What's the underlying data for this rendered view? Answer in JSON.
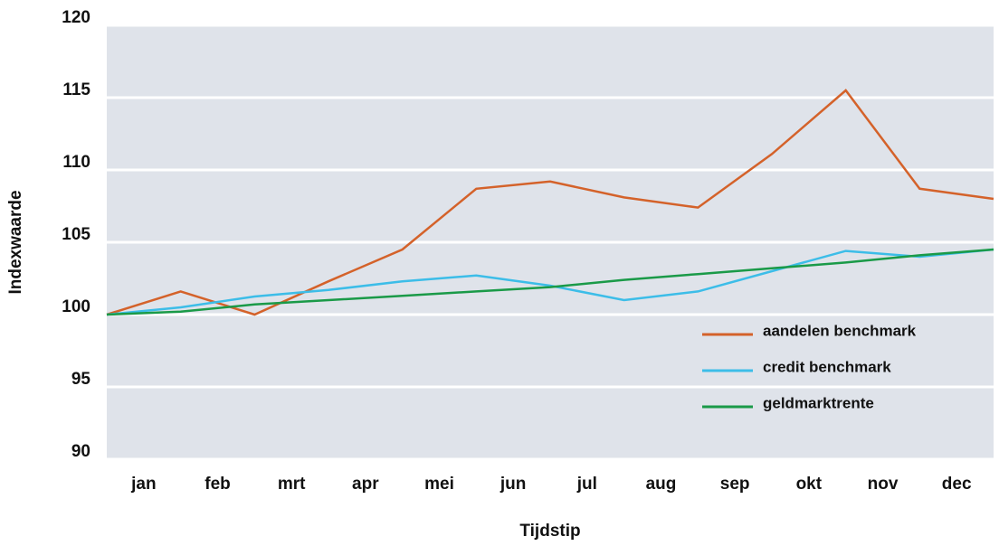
{
  "chart_data": {
    "type": "line",
    "y_label": "Indexwaarde",
    "x_label": "Tijdstip",
    "x": [
      0,
      1,
      2,
      3,
      4,
      5,
      6,
      7,
      8,
      9,
      10,
      11,
      12
    ],
    "xlim": [
      0,
      12
    ],
    "xticks": [
      {
        "value": 0.5,
        "label": "jan"
      },
      {
        "value": 1.5,
        "label": "feb"
      },
      {
        "value": 2.5,
        "label": "mrt"
      },
      {
        "value": 3.5,
        "label": "apr"
      },
      {
        "value": 4.5,
        "label": "mei"
      },
      {
        "value": 5.5,
        "label": "jun"
      },
      {
        "value": 6.5,
        "label": "jul"
      },
      {
        "value": 7.5,
        "label": "aug"
      },
      {
        "value": 8.5,
        "label": "sep"
      },
      {
        "value": 9.5,
        "label": "okt"
      },
      {
        "value": 10.5,
        "label": "nov"
      },
      {
        "value": 11.5,
        "label": "dec"
      }
    ],
    "ylim": [
      90,
      120
    ],
    "yticks": [
      90,
      95,
      100,
      105,
      110,
      115,
      120
    ],
    "grid": true,
    "series": [
      {
        "name": "aandelen benchmark",
        "color": "#d4622a",
        "values": [
          100,
          101.6,
          100,
          102.3,
          104.5,
          108.7,
          109.2,
          108.1,
          107.4,
          111.1,
          115.5,
          108.7,
          108.0
        ]
      },
      {
        "name": "credit benchmark",
        "color": "#3cbde8",
        "values": [
          100,
          100.5,
          101.25,
          101.7,
          102.3,
          102.7,
          102.0,
          101.0,
          101.6,
          103.0,
          104.4,
          104.0,
          104.5
        ]
      },
      {
        "name": "geldmarktrente",
        "color": "#1a9a48",
        "values": [
          100,
          100.2,
          100.7,
          101.0,
          101.3,
          101.6,
          101.9,
          102.4,
          102.8,
          103.2,
          103.6,
          104.1,
          104.5
        ]
      }
    ]
  }
}
